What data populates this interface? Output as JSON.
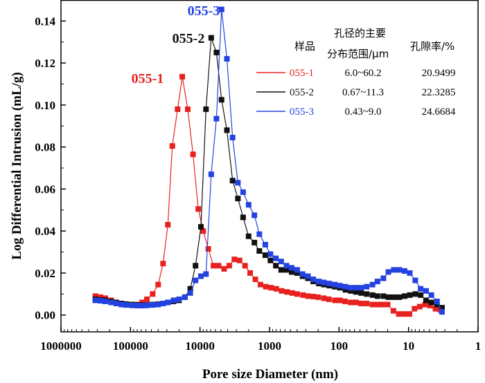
{
  "chart_data": {
    "type": "scatter",
    "xlabel": "Pore size Diameter (nm)",
    "ylabel": "Log Differential Intrusion (mL/g)",
    "x_scale": "log-reversed",
    "xlim": [
      1000000,
      1
    ],
    "ylim": [
      -0.008,
      0.15
    ],
    "x_ticks": [
      {
        "value": 1000000,
        "label": "1000000"
      },
      {
        "value": 100000,
        "label": "100000"
      },
      {
        "value": 10000,
        "label": "10000"
      },
      {
        "value": 1000,
        "label": "1000"
      },
      {
        "value": 100,
        "label": "100"
      },
      {
        "value": 10,
        "label": "10"
      },
      {
        "value": 1,
        "label": "1"
      }
    ],
    "y_ticks": [
      {
        "value": 0.0,
        "label": "0.00"
      },
      {
        "value": 0.02,
        "label": "0.02"
      },
      {
        "value": 0.04,
        "label": "0.04"
      },
      {
        "value": 0.06,
        "label": "0.06"
      },
      {
        "value": 0.08,
        "label": "0.08"
      },
      {
        "value": 0.1,
        "label": "0.10"
      },
      {
        "value": 0.12,
        "label": "0.12"
      },
      {
        "value": 0.14,
        "label": "0.14"
      }
    ],
    "series": [
      {
        "name": "055-1",
        "color": "#e8211e",
        "peak_label": "055-1",
        "x": [
          320000,
          270000,
          230000,
          190000,
          160000,
          135000,
          115000,
          95000,
          80000,
          68000,
          58000,
          48000,
          40000,
          34000,
          29000,
          25000,
          21000,
          18000,
          15000,
          12600,
          10600,
          9000,
          7600,
          6400,
          5400,
          4500,
          3800,
          3200,
          2700,
          2250,
          1900,
          1600,
          1350,
          1130,
          950,
          800,
          670,
          560,
          470,
          400,
          330,
          280,
          235,
          200,
          165,
          140,
          115,
          97,
          82,
          68,
          57,
          48,
          40,
          33,
          28,
          24,
          20,
          16.5,
          13.8,
          11.6,
          9.7,
          8.2,
          6.9,
          5.8,
          4.9,
          4.1,
          3.5
        ],
        "y": [
          0.009,
          0.0085,
          0.008,
          0.007,
          0.006,
          0.0055,
          0.005,
          0.0048,
          0.005,
          0.006,
          0.0075,
          0.01,
          0.0145,
          0.0245,
          0.043,
          0.0805,
          0.098,
          0.1135,
          0.098,
          0.0765,
          0.0505,
          0.04,
          0.0315,
          0.0235,
          0.0235,
          0.022,
          0.0235,
          0.0265,
          0.026,
          0.0235,
          0.02,
          0.017,
          0.0145,
          0.0135,
          0.013,
          0.0125,
          0.0115,
          0.011,
          0.0105,
          0.01,
          0.0095,
          0.009,
          0.0088,
          0.0085,
          0.008,
          0.0075,
          0.007,
          0.007,
          0.0065,
          0.006,
          0.006,
          0.0055,
          0.0055,
          0.005,
          0.005,
          0.005,
          0.005,
          0.002,
          0.0005,
          0.0005,
          0.0005,
          0.003,
          0.004,
          0.005,
          0.0045,
          0.003,
          0.0025
        ]
      },
      {
        "name": "055-2",
        "color": "#111111",
        "peak_label": "055-2",
        "x": [
          320000,
          270000,
          230000,
          190000,
          160000,
          135000,
          115000,
          95000,
          80000,
          68000,
          58000,
          48000,
          40000,
          34000,
          29000,
          24000,
          20000,
          16500,
          13800,
          11600,
          9700,
          8200,
          6900,
          5800,
          4900,
          4100,
          3400,
          2850,
          2400,
          2000,
          1650,
          1400,
          1150,
          970,
          810,
          680,
          570,
          480,
          400,
          335,
          280,
          235,
          195,
          165,
          138,
          115,
          97,
          81,
          68,
          57,
          48,
          40,
          33,
          28,
          23,
          19.5,
          16.3,
          13.6,
          11.4,
          9.6,
          8,
          6.7,
          5.6,
          4.7,
          3.9,
          3.3
        ],
        "y": [
          0.0075,
          0.0072,
          0.007,
          0.0065,
          0.006,
          0.0055,
          0.0052,
          0.005,
          0.0048,
          0.0047,
          0.0048,
          0.005,
          0.0052,
          0.0055,
          0.006,
          0.0065,
          0.007,
          0.0085,
          0.0125,
          0.0235,
          0.042,
          0.098,
          0.132,
          0.125,
          0.1025,
          0.088,
          0.064,
          0.0555,
          0.0465,
          0.0375,
          0.0345,
          0.0305,
          0.0285,
          0.026,
          0.0235,
          0.0215,
          0.0215,
          0.0205,
          0.02,
          0.0185,
          0.0175,
          0.016,
          0.015,
          0.0145,
          0.014,
          0.0135,
          0.013,
          0.012,
          0.0115,
          0.011,
          0.0105,
          0.01,
          0.0095,
          0.009,
          0.009,
          0.0085,
          0.0085,
          0.0085,
          0.009,
          0.0095,
          0.01,
          0.0095,
          0.007,
          0.006,
          0.005,
          0.0035
        ]
      },
      {
        "name": "055-3",
        "color": "#2342e0",
        "peak_label": "055-3",
        "x": [
          320000,
          270000,
          230000,
          190000,
          160000,
          135000,
          115000,
          95000,
          80000,
          68000,
          58000,
          48000,
          40000,
          34000,
          29000,
          24000,
          20000,
          16500,
          13800,
          11600,
          9700,
          8200,
          6900,
          5800,
          4900,
          4100,
          3400,
          2850,
          2400,
          2000,
          1650,
          1400,
          1150,
          970,
          810,
          680,
          570,
          480,
          400,
          335,
          280,
          235,
          195,
          165,
          138,
          115,
          97,
          81,
          68,
          57,
          48,
          40,
          33,
          28,
          23,
          19.5,
          16.3,
          13.6,
          11.4,
          9.6,
          8,
          6.7,
          5.6,
          4.7,
          3.9,
          3.3
        ],
        "y": [
          0.007,
          0.0068,
          0.0065,
          0.006,
          0.0055,
          0.005,
          0.0048,
          0.0046,
          0.0045,
          0.0045,
          0.0046,
          0.0048,
          0.005,
          0.0055,
          0.006,
          0.007,
          0.0075,
          0.0085,
          0.0105,
          0.0165,
          0.0185,
          0.0195,
          0.067,
          0.0935,
          0.1455,
          0.122,
          0.0845,
          0.063,
          0.0585,
          0.0525,
          0.0475,
          0.0385,
          0.0335,
          0.029,
          0.027,
          0.0255,
          0.0235,
          0.0225,
          0.0215,
          0.0195,
          0.0185,
          0.017,
          0.016,
          0.0155,
          0.015,
          0.0145,
          0.014,
          0.0135,
          0.013,
          0.013,
          0.013,
          0.0135,
          0.0145,
          0.016,
          0.0175,
          0.0205,
          0.0215,
          0.0215,
          0.021,
          0.02,
          0.0165,
          0.0125,
          0.0115,
          0.0095,
          0.0065,
          0.0015
        ]
      }
    ],
    "legend": {
      "position": "top-right",
      "header": {
        "sample": "样品",
        "range_line1": "孔径的主要",
        "range_line2": "分布范围/μm",
        "porosity": "孔隙率/%"
      },
      "rows": [
        {
          "name": "055-1",
          "range": "6.0~60.2",
          "porosity": "20.9499",
          "color": "#e8211e"
        },
        {
          "name": "055-2",
          "range": "0.67~11.3",
          "porosity": "22.3285",
          "color": "#111111"
        },
        {
          "name": "055-3",
          "range": "0.43~9.0",
          "porosity": "24.6684",
          "color": "#2342e0"
        }
      ]
    }
  }
}
